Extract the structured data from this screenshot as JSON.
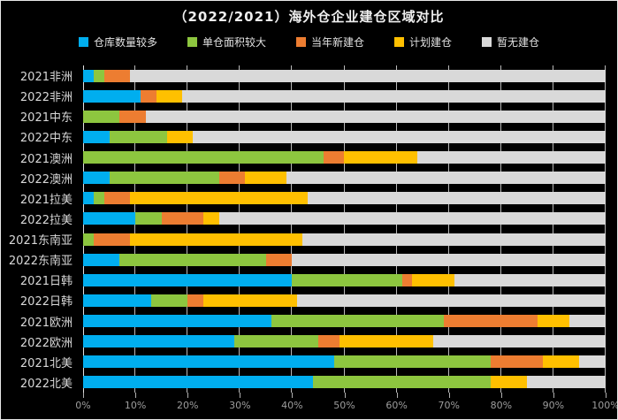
{
  "chart_data": {
    "type": "bar",
    "orientation": "horizontal-stacked",
    "title": "（2022/2021）海外仓企业建仓区域对比",
    "background_color": "#000000",
    "grid": true,
    "legend_position": "top",
    "categories": [
      "2021非洲",
      "2022非洲",
      "2021中东",
      "2022中东",
      "2021澳洲",
      "2022澳洲",
      "2021拉美",
      "2022拉美",
      "2021东南亚",
      "2022东南亚",
      "2021日韩",
      "2022日韩",
      "2021欧洲",
      "2022欧洲",
      "2021北美",
      "2022北美"
    ],
    "series": [
      {
        "name": "仓库数量较多",
        "color": "#00AEEF",
        "values": [
          2,
          11,
          0,
          5,
          0,
          5,
          2,
          10,
          0,
          7,
          40,
          13,
          36,
          29,
          48,
          44
        ]
      },
      {
        "name": "单仓面积较大",
        "color": "#8DC63F",
        "values": [
          2,
          0,
          7,
          11,
          46,
          21,
          2,
          5,
          2,
          28,
          21,
          7,
          33,
          16,
          30,
          34
        ]
      },
      {
        "name": "当年新建仓",
        "color": "#ED7D31",
        "values": [
          5,
          3,
          5,
          0,
          4,
          5,
          5,
          8,
          7,
          5,
          2,
          3,
          18,
          4,
          10,
          0
        ]
      },
      {
        "name": "计划建仓",
        "color": "#FFC000",
        "values": [
          0,
          5,
          0,
          5,
          14,
          8,
          34,
          3,
          33,
          0,
          8,
          18,
          6,
          18,
          7,
          7
        ]
      },
      {
        "name": "暂无建仓",
        "color": "#D9D9D9",
        "values": [
          91,
          81,
          88,
          79,
          36,
          61,
          57,
          74,
          58,
          60,
          29,
          59,
          7,
          33,
          5,
          15
        ]
      }
    ],
    "x_axis": {
      "min": 0,
      "max": 100,
      "tick_labels": [
        "0%",
        "10%",
        "20%",
        "30%",
        "40%",
        "50%",
        "60%",
        "70%",
        "80%",
        "90%",
        "100%"
      ]
    }
  }
}
